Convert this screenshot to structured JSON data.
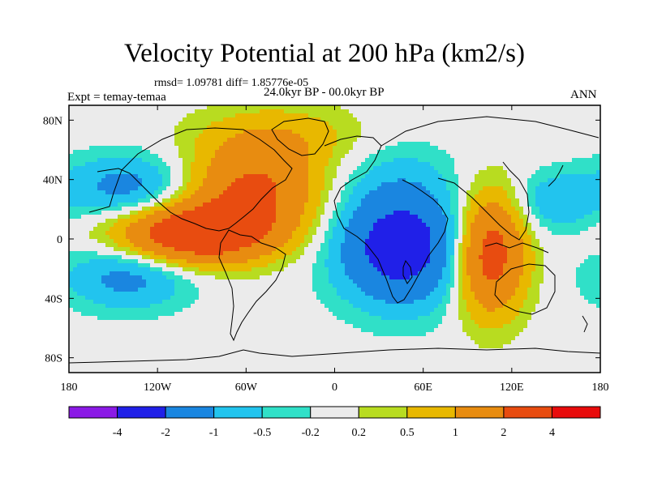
{
  "title": "Velocity Potential at 200 hPa (km2/s)",
  "stats": "rmsd= 1.09781 diff= 1.85776e-05",
  "left_label": "Expt = temay-temaa",
  "center_label": "24.0kyr BP - 00.0kyr BP",
  "right_label": "ANN",
  "chart_data": {
    "type": "heatmap",
    "projection": "cylindrical equidistant",
    "lon_range": [
      -180,
      180
    ],
    "lat_range": [
      -90,
      90
    ],
    "x_ticks": [
      {
        "lon": -180,
        "label": "180"
      },
      {
        "lon": -120,
        "label": "120W"
      },
      {
        "lon": -60,
        "label": "60W"
      },
      {
        "lon": 0,
        "label": "0"
      },
      {
        "lon": 60,
        "label": "60E"
      },
      {
        "lon": 120,
        "label": "120E"
      },
      {
        "lon": 180,
        "label": "180"
      }
    ],
    "y_ticks": [
      {
        "lat": 80,
        "label": "80N"
      },
      {
        "lat": 40,
        "label": "40N"
      },
      {
        "lat": 0,
        "label": "0"
      },
      {
        "lat": -40,
        "label": "40S"
      },
      {
        "lat": -80,
        "label": "80S"
      }
    ],
    "contour_levels": [
      -4,
      -2,
      -1,
      -0.5,
      -0.2,
      0.2,
      0.5,
      1,
      2,
      4
    ],
    "colorbar_labels": [
      "-4",
      "-2",
      "-1",
      "-0.5",
      "-0.2",
      "0.2",
      "0.5",
      "1",
      "2",
      "4"
    ],
    "colors": [
      "#8B1AE6",
      "#2020E8",
      "#1A86E0",
      "#22C4EE",
      "#30E0C8",
      "#EBEBEB",
      "#B8DC20",
      "#E8B800",
      "#E88C10",
      "#E84C10",
      "#E80C0C"
    ],
    "centers": [
      {
        "lon": -140,
        "lat": 35,
        "value": -1.3,
        "rx": 42,
        "ry": 22
      },
      {
        "lon": -140,
        "lat": -25,
        "value": -1.3,
        "rx": 42,
        "ry": 22
      },
      {
        "lon": -95,
        "lat": 3,
        "value": 3.2,
        "rx": 52,
        "ry": 20
      },
      {
        "lon": -55,
        "lat": 32,
        "value": 2.1,
        "rx": 45,
        "ry": 28
      },
      {
        "lon": -40,
        "lat": 68,
        "value": 0.9,
        "rx": 55,
        "ry": 22
      },
      {
        "lon": 45,
        "lat": -5,
        "value": -2.8,
        "rx": 42,
        "ry": 38
      },
      {
        "lon": 40,
        "lat": 45,
        "value": -0.35,
        "rx": 45,
        "ry": 25
      },
      {
        "lon": 105,
        "lat": -10,
        "value": 2.7,
        "rx": 24,
        "ry": 40
      },
      {
        "lon": 150,
        "lat": 25,
        "value": -0.9,
        "rx": 28,
        "ry": 20
      }
    ]
  }
}
